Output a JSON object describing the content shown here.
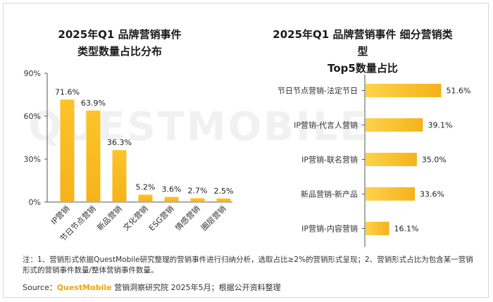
{
  "colors": {
    "bar": "#f7b81b",
    "bar_light": "#fcd34d",
    "axis": "#555555",
    "brand": "#f5a300"
  },
  "watermark": "QUESTMOBILE",
  "left_title": {
    "line1": "2025年Q1 品牌营销事件",
    "line2": "类型数量占比分布"
  },
  "right_title": {
    "line1": "2025年Q1 品牌营销事件 细分营销类型",
    "line2": "Top5数量占比"
  },
  "chart_data": [
    {
      "type": "bar",
      "categories": [
        "IP营销",
        "节日节点营销",
        "新品营销",
        "文化营销",
        "ESG营销",
        "情感营销",
        "圈层营销"
      ],
      "values": [
        71.6,
        63.9,
        36.3,
        5.2,
        3.6,
        2.7,
        2.5
      ],
      "value_labels": [
        "71.6%",
        "63.9%",
        "36.3%",
        "5.2%",
        "3.6%",
        "2.7%",
        "2.5%"
      ],
      "yticks": [
        "90%",
        "60%",
        "30%",
        "0%"
      ],
      "ylim": [
        0,
        90
      ]
    },
    {
      "type": "bar",
      "orientation": "horizontal",
      "categories": [
        "节日节点营销-法定节日",
        "IP营销-代言人营销",
        "IP营销-联名营销",
        "新品营销-新产品",
        "IP营销-内容营销"
      ],
      "values": [
        51.6,
        39.1,
        35.0,
        33.6,
        16.1
      ],
      "value_labels": [
        "51.6%",
        "39.1%",
        "35.0%",
        "33.6%",
        "16.1%"
      ],
      "xlim": [
        0,
        60
      ]
    }
  ],
  "note": "注：1、营销形式依据QuestMobile研究整理的营销事件进行归纳分析，选取占比≥2%的营销形式呈现；2、营销形式占比为包含某一营销形式的营销事件数量/整体营销事件数量。",
  "source": {
    "prefix": "Source：",
    "brand": "QuestMobile",
    "rest": " 营销洞察研究院 2025年5月；根据公开资料整理"
  }
}
